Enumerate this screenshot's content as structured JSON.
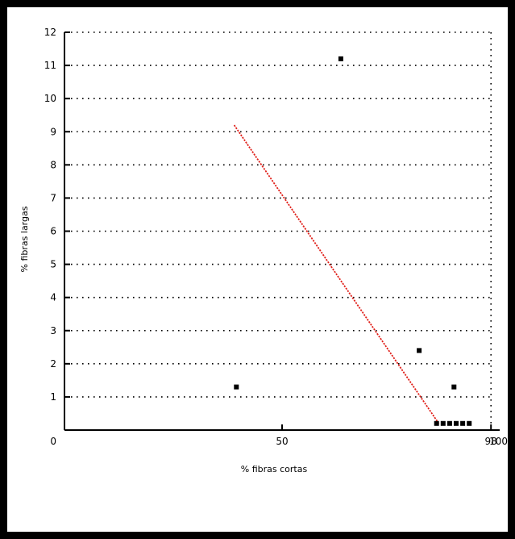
{
  "chart_data": {
    "type": "scatter",
    "title": "",
    "xlabel": "% fibras cortas",
    "ylabel": "% fibras largas",
    "xlim": [
      0,
      100
    ],
    "ylim": [
      0,
      12
    ],
    "x_ticks": [
      0,
      50,
      98,
      100
    ],
    "x_tick_labels": [
      "0",
      "50",
      "98",
      "100"
    ],
    "y_ticks": [
      1,
      2,
      3,
      4,
      5,
      6,
      7,
      8,
      9,
      10,
      11,
      12
    ],
    "y_tick_labels": [
      "1",
      "2",
      "3",
      "4",
      "5",
      "6",
      "7",
      "8",
      "9",
      "10",
      "11",
      "12"
    ],
    "grid": true,
    "grid_x_at": [
      98
    ],
    "series": [
      {
        "points": [
          {
            "x": 39.5,
            "y": 1.3
          },
          {
            "x": 63.5,
            "y": 11.2
          },
          {
            "x": 81.5,
            "y": 2.4
          },
          {
            "x": 89.5,
            "y": 1.3
          },
          {
            "x": 85.5,
            "y": 0.2
          },
          {
            "x": 87.0,
            "y": 0.2
          },
          {
            "x": 88.5,
            "y": 0.2
          },
          {
            "x": 90.0,
            "y": 0.2
          },
          {
            "x": 91.5,
            "y": 0.2
          },
          {
            "x": 93.0,
            "y": 0.2
          }
        ]
      }
    ],
    "trendline": {
      "x": [
        39.0,
        86.0
      ],
      "y": [
        9.2,
        0.2
      ],
      "color": "#e0201a"
    },
    "colors": {
      "points": "#000000",
      "trendline": "#e0201a",
      "grid": "#000000",
      "axes": "#000000"
    }
  }
}
